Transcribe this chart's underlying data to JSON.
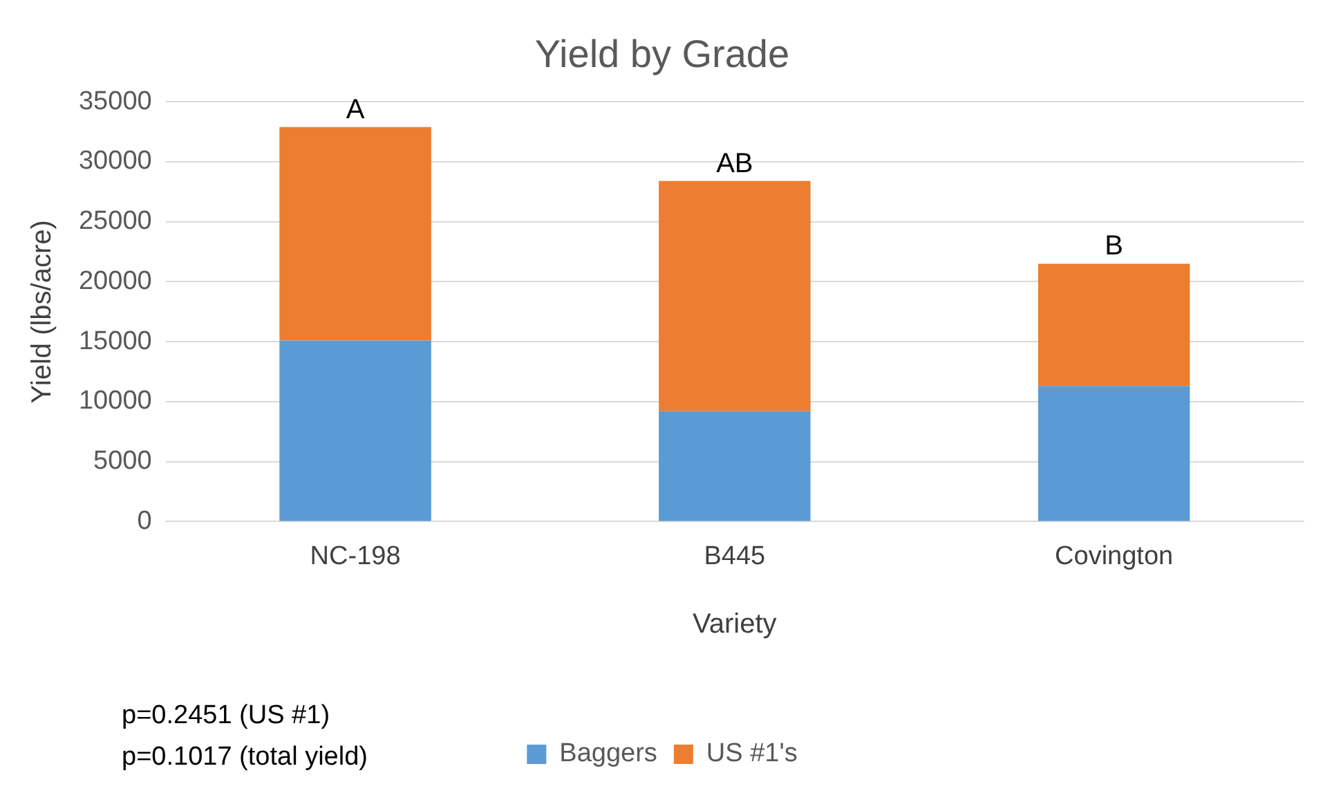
{
  "chart_data": {
    "type": "bar",
    "stacked": true,
    "title": "Yield by Grade",
    "xlabel": "Variety",
    "ylabel": "Yield (lbs/acre)",
    "categories": [
      "NC-198",
      "B445",
      "Covington"
    ],
    "series": [
      {
        "name": "Baggers",
        "color": "#5b9bd5",
        "values": [
          15100,
          9200,
          11300
        ]
      },
      {
        "name": "US #1's",
        "color": "#ed7d31",
        "values": [
          17800,
          19200,
          10200
        ]
      }
    ],
    "ylim": [
      0,
      35000
    ],
    "yticks": [
      0,
      5000,
      10000,
      15000,
      20000,
      25000,
      30000,
      35000
    ],
    "grid": "y",
    "legend": "bottom",
    "annotations": [
      {
        "text": "A",
        "x": "NC-198",
        "y": 32900
      },
      {
        "text": "AB",
        "x": "B445",
        "y": 28400
      },
      {
        "text": "B",
        "x": "Covington",
        "y": 21500
      },
      "p=0.2451 (US #1)",
      "p=0.1017 (total yield)"
    ]
  }
}
